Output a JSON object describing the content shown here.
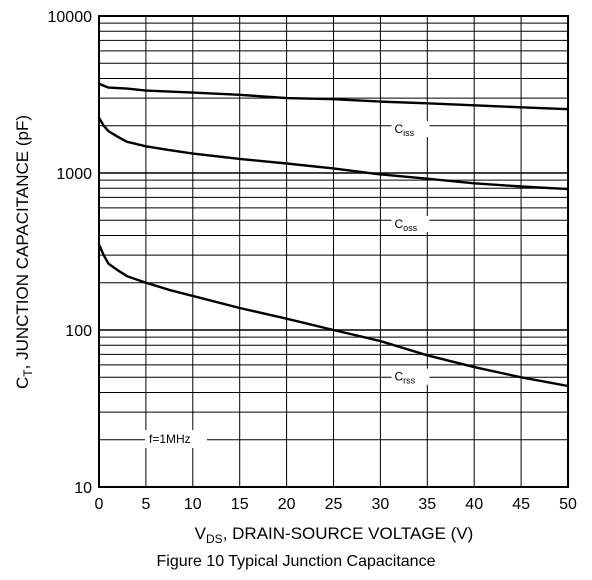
{
  "chart_data": {
    "type": "line",
    "title": "",
    "caption": "Figure 10 Typical Junction Capacitance",
    "xlabel": {
      "main": "V",
      "sub": "DS",
      "rest": ", DRAIN-SOURCE VOLTAGE (V)"
    },
    "ylabel": {
      "main": "C",
      "sub": "T",
      "rest": ", JUNCTION CAPACITANCE (pF)"
    },
    "xlim": [
      0,
      50
    ],
    "ylim": [
      10,
      10000
    ],
    "yscale": "log",
    "grid": true,
    "xticks": [
      0,
      5,
      10,
      15,
      20,
      25,
      30,
      35,
      40,
      45,
      50
    ],
    "xtick_labels": [
      "0",
      "5",
      "10",
      "15",
      "20",
      "25",
      "30",
      "35",
      "40",
      "45",
      "50"
    ],
    "yticks": [
      10,
      100,
      1000,
      10000
    ],
    "ytick_labels": [
      "10",
      "100",
      "1000",
      "10000"
    ],
    "annotation": "f=1MHz",
    "series": [
      {
        "name": "Ciss",
        "name_main": "C",
        "name_sub": "iss",
        "x": [
          0,
          1,
          3,
          5,
          10,
          15,
          20,
          25,
          30,
          35,
          40,
          45,
          50
        ],
        "y": [
          3700,
          3500,
          3450,
          3350,
          3250,
          3150,
          3000,
          2950,
          2850,
          2780,
          2700,
          2620,
          2550
        ]
      },
      {
        "name": "Coss",
        "name_main": "C",
        "name_sub": "oss",
        "x": [
          0,
          0.5,
          1,
          2,
          3,
          5,
          7.5,
          10,
          15,
          20,
          25,
          30,
          35,
          40,
          45,
          50
        ],
        "y": [
          2250,
          2000,
          1850,
          1700,
          1580,
          1480,
          1400,
          1330,
          1230,
          1150,
          1070,
          980,
          920,
          860,
          820,
          790
        ]
      },
      {
        "name": "Crss",
        "name_main": "C",
        "name_sub": "rss",
        "x": [
          0,
          0.5,
          1,
          2,
          3,
          5,
          7.5,
          10,
          15,
          20,
          25,
          30,
          35,
          40,
          45,
          50
        ],
        "y": [
          350,
          300,
          265,
          240,
          220,
          200,
          180,
          165,
          138,
          118,
          100,
          85,
          69,
          58,
          50,
          44
        ]
      }
    ]
  }
}
